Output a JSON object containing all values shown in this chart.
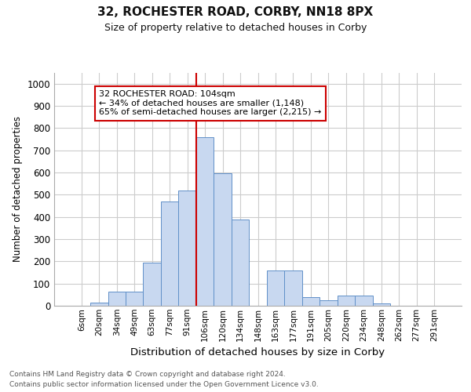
{
  "title_line1": "32, ROCHESTER ROAD, CORBY, NN18 8PX",
  "title_line2": "Size of property relative to detached houses in Corby",
  "xlabel": "Distribution of detached houses by size in Corby",
  "ylabel": "Number of detached properties",
  "categories": [
    "6sqm",
    "20sqm",
    "34sqm",
    "49sqm",
    "63sqm",
    "77sqm",
    "91sqm",
    "106sqm",
    "120sqm",
    "134sqm",
    "148sqm",
    "163sqm",
    "177sqm",
    "191sqm",
    "205sqm",
    "220sqm",
    "234sqm",
    "248sqm",
    "262sqm",
    "277sqm",
    "291sqm"
  ],
  "values": [
    0,
    15,
    65,
    65,
    195,
    470,
    520,
    760,
    595,
    390,
    0,
    160,
    160,
    40,
    25,
    45,
    45,
    10,
    0,
    0,
    0
  ],
  "bar_color": "#c8d8f0",
  "bar_edge_color": "#6090c8",
  "property_line_index": 7,
  "annotation_line1": "32 ROCHESTER ROAD: 104sqm",
  "annotation_line2": "← 34% of detached houses are smaller (1,148)",
  "annotation_line3": "65% of semi-detached houses are larger (2,215) →",
  "annotation_box_color": "#ffffff",
  "annotation_box_edge": "#cc0000",
  "vline_color": "#cc0000",
  "grid_color": "#cccccc",
  "footnote_line1": "Contains HM Land Registry data © Crown copyright and database right 2024.",
  "footnote_line2": "Contains public sector information licensed under the Open Government Licence v3.0.",
  "ylim": [
    0,
    1050
  ],
  "yticks": [
    0,
    100,
    200,
    300,
    400,
    500,
    600,
    700,
    800,
    900,
    1000
  ],
  "bg_color": "#ffffff",
  "title_fontsize": 11,
  "subtitle_fontsize": 9
}
